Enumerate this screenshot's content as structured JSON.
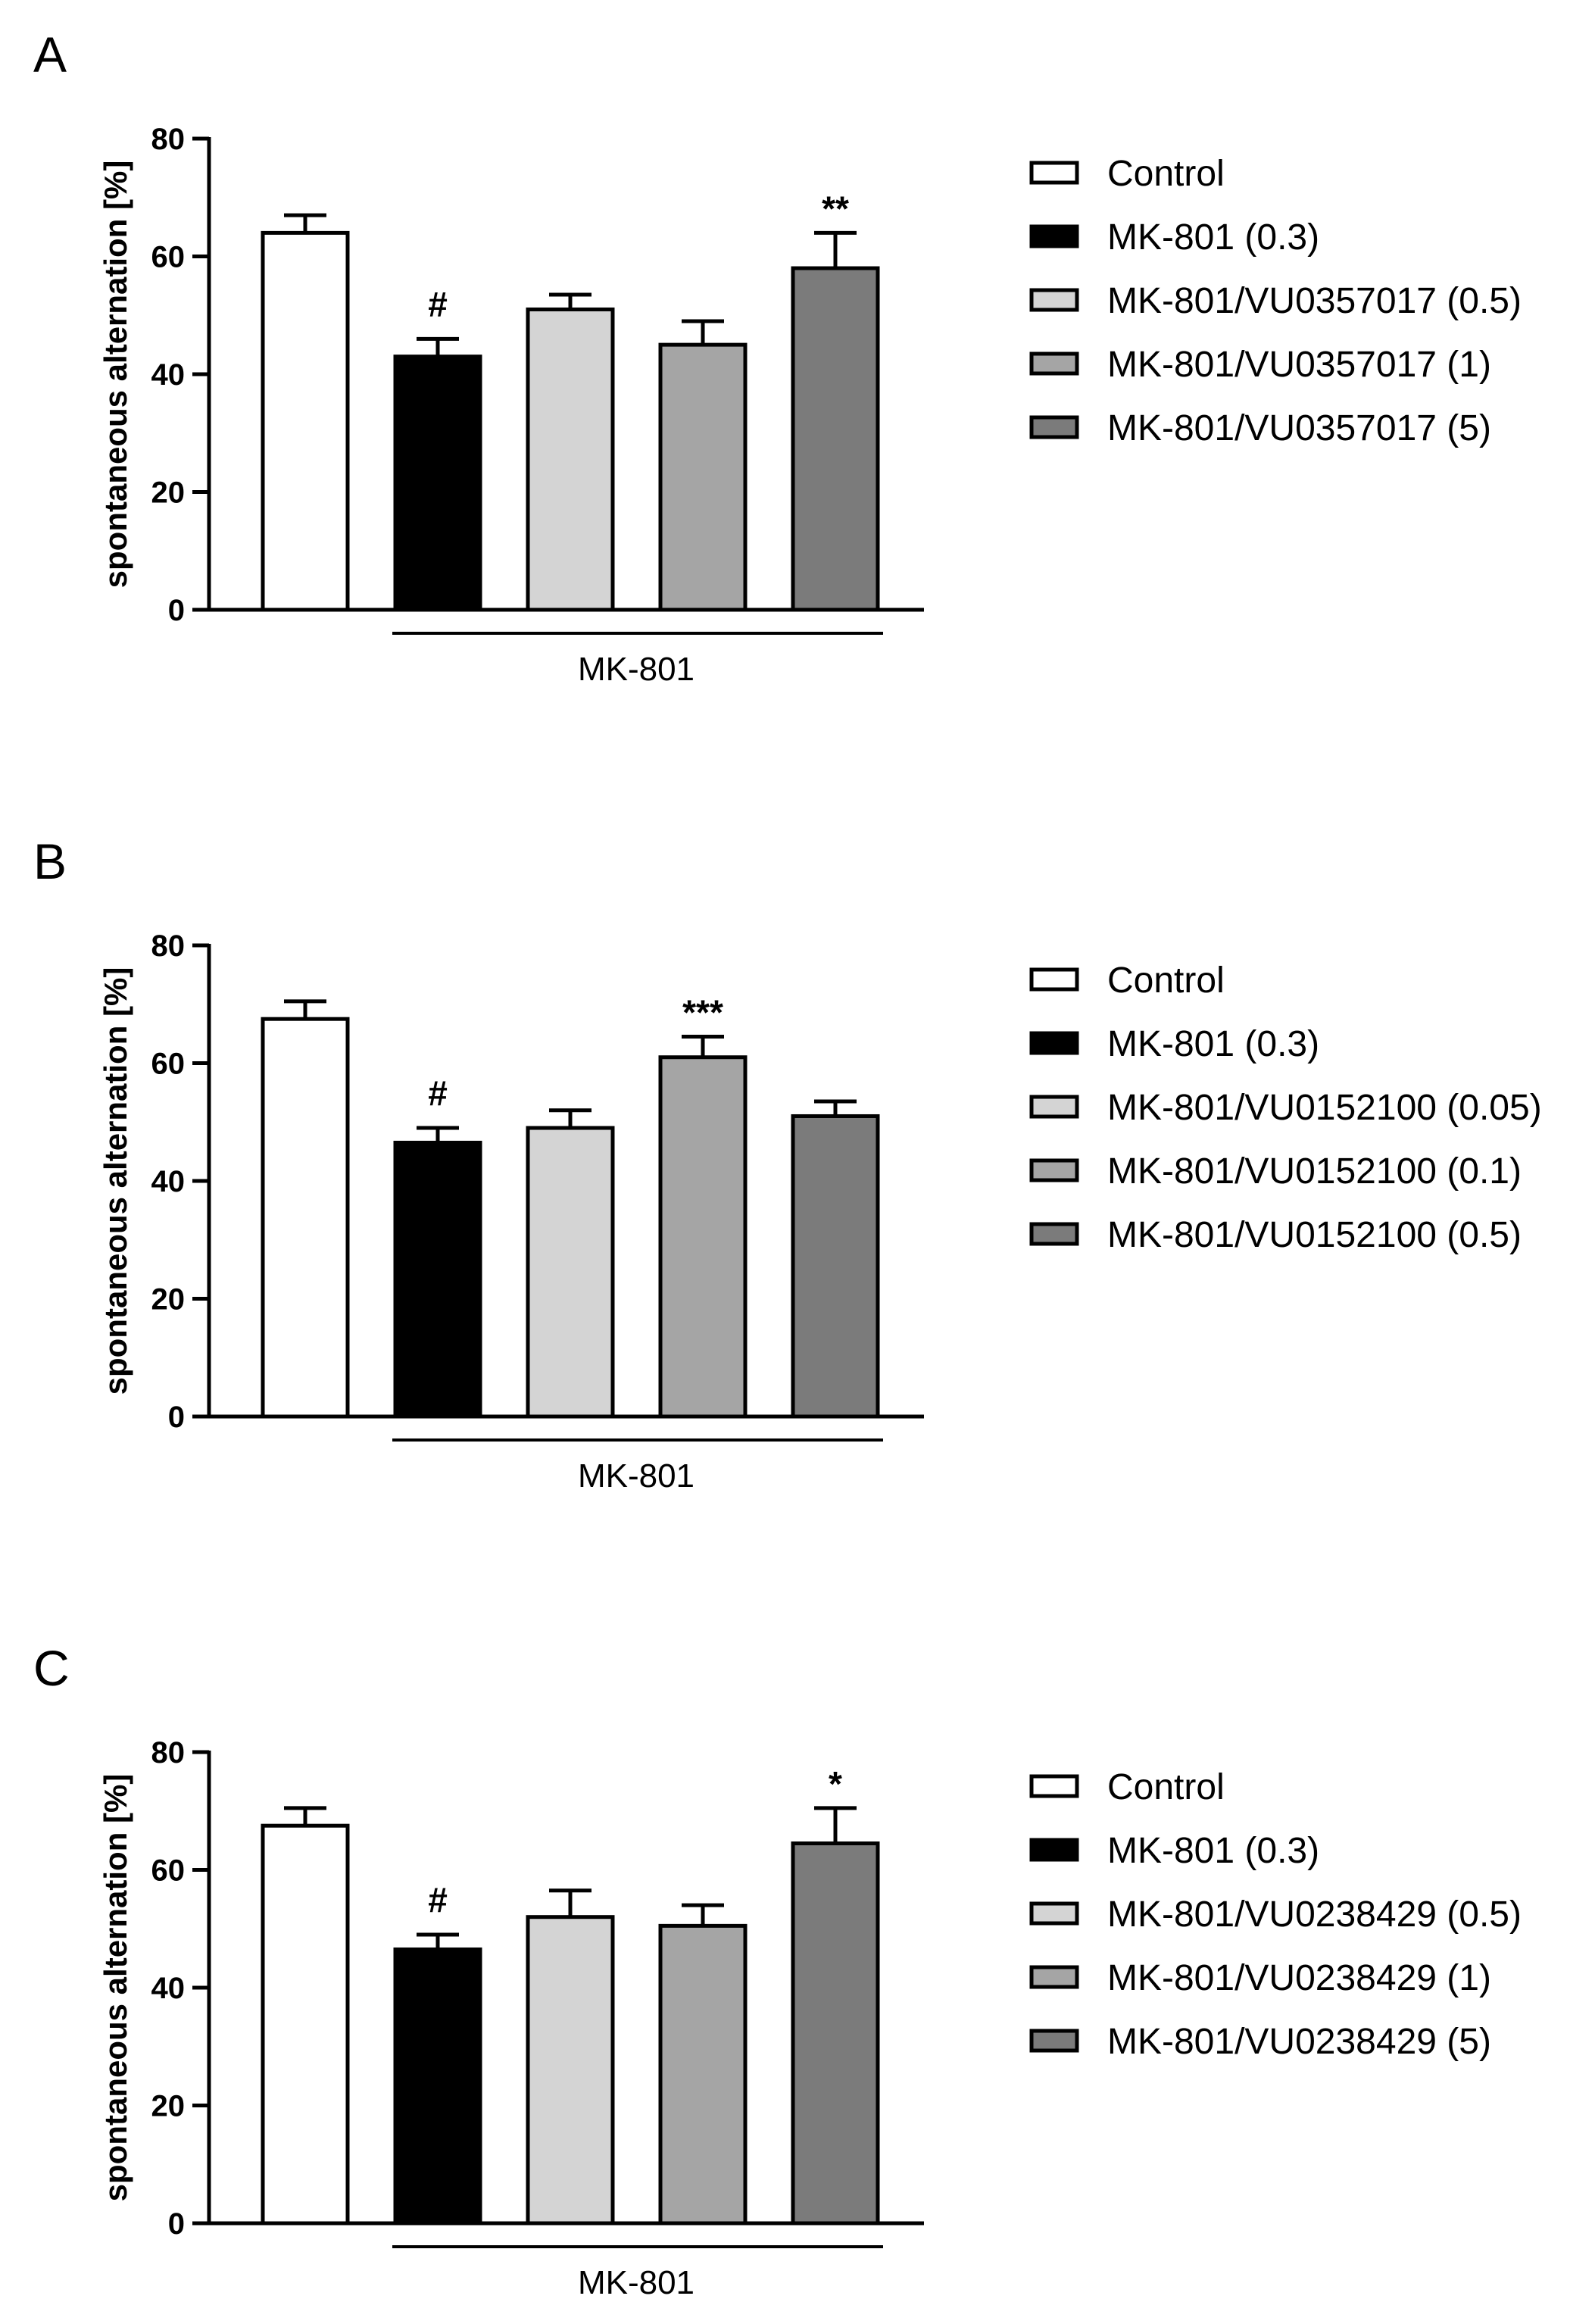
{
  "colors": {
    "axis": "#000000",
    "bar_stroke": "#000000",
    "series_fills": [
      "#ffffff",
      "#000000",
      "#d4d4d4",
      "#a5a5a5",
      "#7b7b7b"
    ]
  },
  "chart_data": [
    {
      "panel": "A",
      "type": "bar",
      "ylabel": "spontaneous alternation [%]",
      "ylim": [
        0,
        80
      ],
      "yticks": [
        0,
        20,
        40,
        60,
        80
      ],
      "group_label": "MK-801",
      "categories": [
        "Control",
        "MK-801 (0.3)",
        "MK-801/VU0357017 (0.5)",
        "MK-801/VU0357017 (1)",
        "MK-801/VU0357017 (5)"
      ],
      "values": [
        64,
        43,
        51,
        45,
        58
      ],
      "errors": [
        3,
        3,
        2.5,
        4,
        6
      ],
      "significance": [
        "",
        "#",
        "",
        "",
        "**"
      ]
    },
    {
      "panel": "B",
      "type": "bar",
      "ylabel": "spontaneous alternation [%]",
      "ylim": [
        0,
        80
      ],
      "yticks": [
        0,
        20,
        40,
        60,
        80
      ],
      "group_label": "MK-801",
      "categories": [
        "Control",
        "MK-801 (0.3)",
        "MK-801/VU0152100 (0.05)",
        "MK-801/VU0152100 (0.1)",
        "MK-801/VU0152100 (0.5)"
      ],
      "values": [
        67.5,
        46.5,
        49,
        61,
        51
      ],
      "errors": [
        3,
        2.5,
        3,
        3.5,
        2.5
      ],
      "significance": [
        "",
        "#",
        "",
        "***",
        ""
      ]
    },
    {
      "panel": "C",
      "type": "bar",
      "ylabel": "spontaneous alternation [%]",
      "ylim": [
        0,
        80
      ],
      "yticks": [
        0,
        20,
        40,
        60,
        80
      ],
      "group_label": "MK-801",
      "categories": [
        "Control",
        "MK-801 (0.3)",
        "MK-801/VU0238429 (0.5)",
        "MK-801/VU0238429 (1)",
        "MK-801/VU0238429 (5)"
      ],
      "values": [
        67.5,
        46.5,
        52,
        50.5,
        64.5
      ],
      "errors": [
        3,
        2.5,
        4.5,
        3.5,
        6
      ],
      "significance": [
        "",
        "#",
        "",
        "",
        "*"
      ]
    }
  ]
}
